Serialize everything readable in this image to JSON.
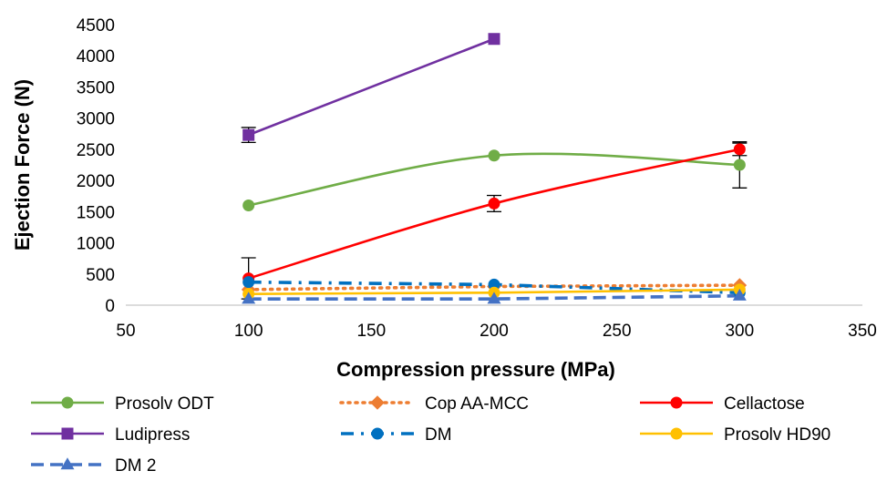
{
  "chart_data": {
    "type": "line",
    "xlabel": "Compression pressure (MPa)",
    "ylabel": "Ejection Force (N)",
    "xlim": [
      50,
      350
    ],
    "ylim": [
      0,
      4500
    ],
    "xticks": [
      50,
      100,
      150,
      200,
      250,
      300,
      350
    ],
    "yticks": [
      0,
      500,
      1000,
      1500,
      2000,
      2500,
      3000,
      3500,
      4000,
      4500
    ],
    "grid": false,
    "legend_position": "bottom",
    "series": [
      {
        "name": "Prosolv ODT",
        "color": "#70AD47",
        "marker": "circle",
        "dash": "solid",
        "smooth": true,
        "x": [
          100,
          200,
          300
        ],
        "y": [
          1600,
          2400,
          2250
        ],
        "err": [
          0,
          0,
          370
        ]
      },
      {
        "name": "Cop AA-MCC",
        "color": "#ED7D31",
        "marker": "diamond",
        "dash": "dotted",
        "smooth": false,
        "x": [
          100,
          200,
          300
        ],
        "y": [
          250,
          300,
          320
        ],
        "err": [
          0,
          0,
          0
        ]
      },
      {
        "name": "Cellactose",
        "color": "#FF0000",
        "marker": "circle",
        "dash": "solid",
        "smooth": true,
        "x": [
          100,
          200,
          300
        ],
        "y": [
          430,
          1630,
          2500
        ],
        "err": [
          330,
          130,
          100
        ]
      },
      {
        "name": "Ludipress",
        "color": "#7030A0",
        "marker": "square",
        "dash": "solid",
        "smooth": false,
        "x": [
          100,
          200
        ],
        "y": [
          2730,
          4270
        ],
        "err": [
          120,
          0
        ]
      },
      {
        "name": "DM",
        "color": "#0070C0",
        "marker": "circle",
        "dash": "dashdot",
        "smooth": false,
        "x": [
          100,
          200,
          300
        ],
        "y": [
          370,
          330,
          200
        ],
        "err": [
          0,
          0,
          0
        ]
      },
      {
        "name": "Prosolv HD90",
        "color": "#FFC000",
        "marker": "circle",
        "dash": "solid",
        "smooth": false,
        "x": [
          100,
          200,
          300
        ],
        "y": [
          180,
          200,
          250
        ],
        "err": [
          0,
          0,
          0
        ]
      },
      {
        "name": "DM 2",
        "color": "#4472C4",
        "marker": "triangle",
        "dash": "dashed",
        "smooth": false,
        "x": [
          100,
          200,
          300
        ],
        "y": [
          100,
          100,
          150
        ],
        "err": [
          0,
          0,
          0
        ]
      }
    ]
  }
}
